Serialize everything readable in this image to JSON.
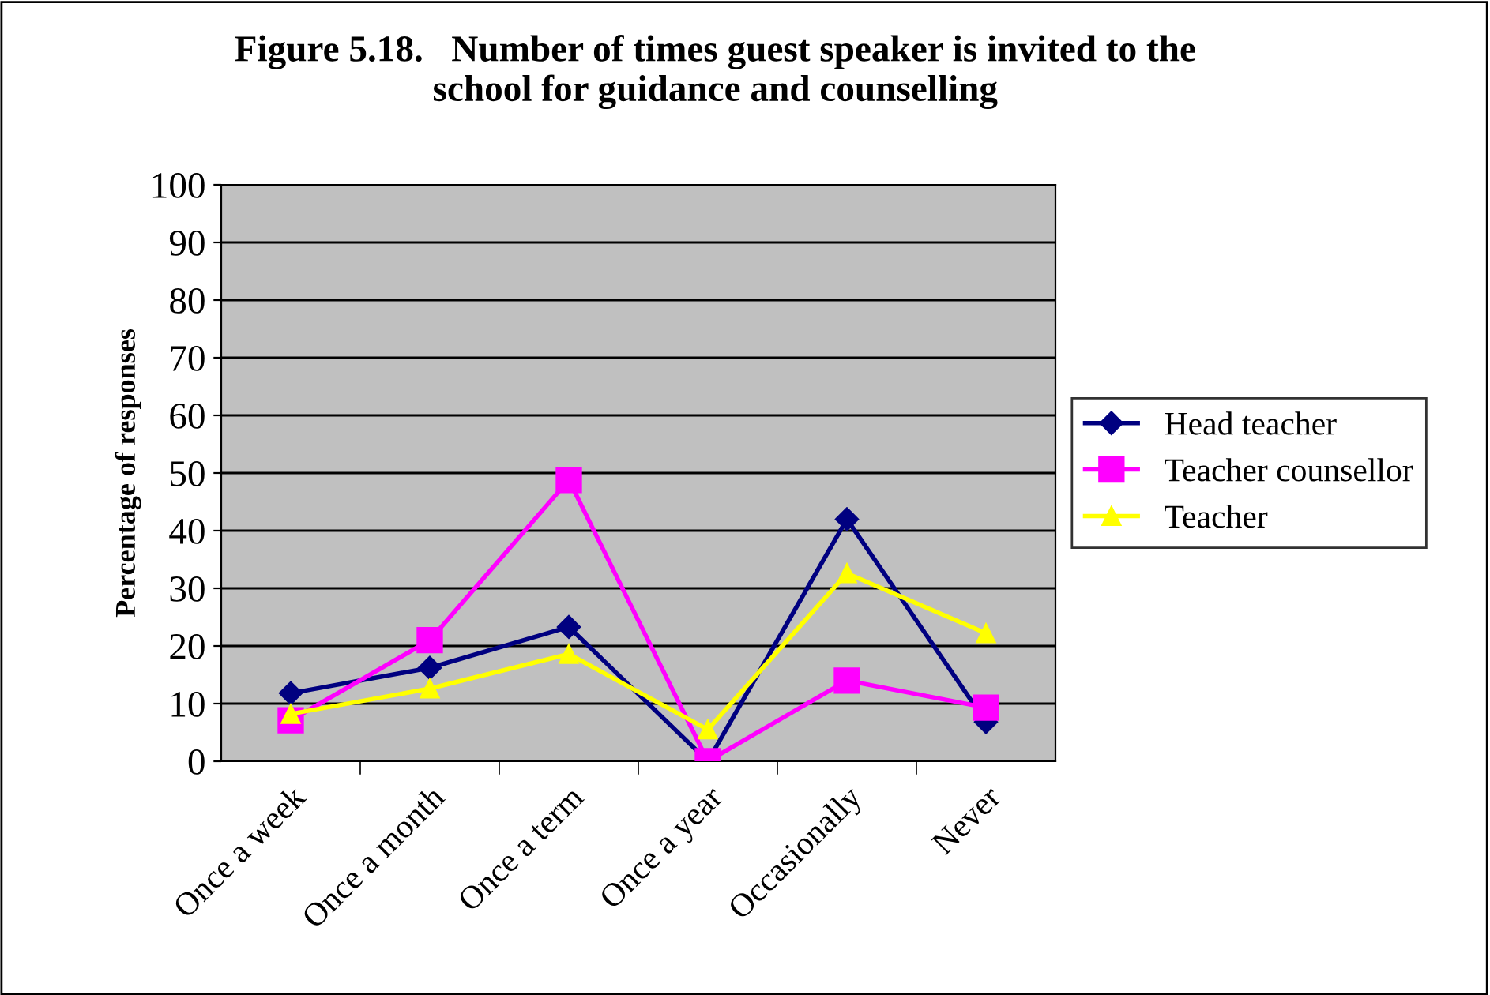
{
  "chart_data": {
    "type": "line",
    "title": "Figure 5.18.   Number of times guest speaker is invited to the\nschool for guidance and counselling",
    "ylabel": "Percentage of responses",
    "categories": [
      "Once a week",
      "Once a month",
      "Once a term",
      "Once a year",
      "Occasionally",
      "Never"
    ],
    "series": [
      {
        "name": "Head teacher",
        "color": "#000080",
        "marker": "diamond",
        "values": [
          11.8,
          16.2,
          23.3,
          0,
          42,
          6.8
        ]
      },
      {
        "name": "Teacher counsellor",
        "color": "#ff00ff",
        "marker": "square",
        "values": [
          7.1,
          21,
          48.8,
          0,
          14,
          9.3
        ]
      },
      {
        "name": "Teacher",
        "color": "#ffff00",
        "marker": "triangle",
        "values": [
          8.2,
          12.6,
          18.6,
          5.5,
          32.6,
          22.2
        ]
      }
    ],
    "ylim": [
      0,
      100
    ],
    "yticks": [
      0,
      10,
      20,
      30,
      40,
      50,
      60,
      70,
      80,
      90,
      100
    ],
    "grid": "y",
    "legend": "right",
    "line_style": "solid"
  }
}
